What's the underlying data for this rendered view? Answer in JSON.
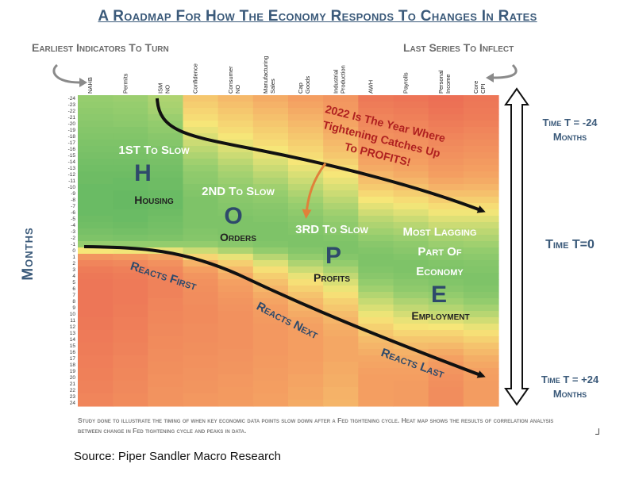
{
  "title": "A Roadmap For How The Economy Responds To Changes In Rates",
  "labels": {
    "earliest": "Earliest Indicators To Turn",
    "last": "Last Series To Inflect",
    "months_axis": "Months",
    "time_top_1": "Time T = -24",
    "time_top_2": "Months",
    "time_zero": "Time T=0",
    "time_bot_1": "Time T = +24",
    "time_bot_2": "Months"
  },
  "annotations": {
    "hope_h_1": "1ST To Slow",
    "hope_h_letter": "H",
    "hope_h_word": "Housing",
    "hope_o_1": "2ND To Slow",
    "hope_o_letter": "O",
    "hope_o_word": "Orders",
    "hope_p_1": "3RD To Slow",
    "hope_p_letter": "P",
    "hope_p_word": "Profits",
    "hope_e_1": "Most Lagging",
    "hope_e_2": "Part Of",
    "hope_e_3": "Economy",
    "hope_e_letter": "E",
    "hope_e_word": "Employment",
    "callout_1": "2022 Is The Year Where",
    "callout_2": "Tightening Catches Up",
    "callout_3": "To PROFITS!",
    "reacts_first": "Reacts First",
    "reacts_next": "Reacts Next",
    "reacts_last": "Reacts Last"
  },
  "footnote": "Study done to illustrate the timing of when key economic data points slow down after a Fed tightening cycle. Heat map shows the results of correlation analysis between change in Fed tightening cycle and peaks in data.",
  "corner_mark": "┘",
  "source": "Source: Piper Sandler Macro Research",
  "colors": {
    "title": "#3b5a7a",
    "annotation_text": "#2e4a6b",
    "callout_text": "#b02020",
    "hope_text_white": "#ffffff",
    "arrow_black": "#111111",
    "callout_arrow": "#e0813a"
  },
  "chart_data": {
    "type": "heatmap",
    "x": [
      "NAHB",
      "Permits",
      "ISM NO",
      "Confidence",
      "Consumer NO",
      "Manufacturing Sales",
      "Cap Goods",
      "Industrial Production",
      "AWH",
      "Payrolls",
      "Personal Income",
      "Core CPI"
    ],
    "y": [
      -24,
      -23,
      -22,
      -21,
      -20,
      -19,
      -18,
      -17,
      -16,
      -15,
      -14,
      -13,
      -12,
      -11,
      -10,
      -9,
      -8,
      -7,
      -6,
      -5,
      -4,
      -3,
      -2,
      -1,
      0,
      1,
      2,
      3,
      4,
      5,
      6,
      7,
      8,
      9,
      10,
      11,
      12,
      13,
      14,
      15,
      16,
      17,
      18,
      19,
      20,
      21,
      22,
      23,
      24
    ],
    "ylabel": "Months",
    "value_scale": "correlation (0 = red/weak, 1 = green/strong)",
    "z_columns": [
      [
        0.75,
        0.76,
        0.77,
        0.78,
        0.79,
        0.8,
        0.81,
        0.82,
        0.83,
        0.84,
        0.85,
        0.86,
        0.87,
        0.87,
        0.88,
        0.88,
        0.88,
        0.88,
        0.88,
        0.87,
        0.86,
        0.84,
        0.82,
        0.75,
        0.55,
        0.3,
        0.22,
        0.18,
        0.16,
        0.15,
        0.15,
        0.15,
        0.15,
        0.15,
        0.15,
        0.16,
        0.16,
        0.17,
        0.17,
        0.18,
        0.18,
        0.19,
        0.19,
        0.2,
        0.2,
        0.21,
        0.21,
        0.22,
        0.22
      ],
      [
        0.74,
        0.75,
        0.76,
        0.77,
        0.78,
        0.8,
        0.81,
        0.82,
        0.83,
        0.84,
        0.85,
        0.86,
        0.87,
        0.88,
        0.88,
        0.89,
        0.89,
        0.89,
        0.88,
        0.88,
        0.87,
        0.85,
        0.83,
        0.76,
        0.56,
        0.32,
        0.24,
        0.2,
        0.18,
        0.17,
        0.17,
        0.17,
        0.17,
        0.18,
        0.18,
        0.19,
        0.19,
        0.2,
        0.2,
        0.21,
        0.21,
        0.22,
        0.22,
        0.23,
        0.23,
        0.24,
        0.24,
        0.25,
        0.25
      ],
      [
        0.7,
        0.71,
        0.72,
        0.74,
        0.76,
        0.77,
        0.79,
        0.8,
        0.82,
        0.83,
        0.84,
        0.85,
        0.86,
        0.87,
        0.87,
        0.88,
        0.88,
        0.88,
        0.87,
        0.86,
        0.85,
        0.84,
        0.82,
        0.76,
        0.58,
        0.36,
        0.28,
        0.24,
        0.22,
        0.21,
        0.21,
        0.21,
        0.22,
        0.22,
        0.23,
        0.23,
        0.24,
        0.24,
        0.25,
        0.25,
        0.26,
        0.26,
        0.27,
        0.27,
        0.28,
        0.28,
        0.29,
        0.29,
        0.3
      ],
      [
        0.46,
        0.48,
        0.5,
        0.52,
        0.55,
        0.58,
        0.61,
        0.64,
        0.67,
        0.7,
        0.73,
        0.75,
        0.77,
        0.78,
        0.8,
        0.81,
        0.82,
        0.82,
        0.82,
        0.82,
        0.82,
        0.81,
        0.8,
        0.76,
        0.64,
        0.5,
        0.4,
        0.34,
        0.3,
        0.28,
        0.27,
        0.26,
        0.26,
        0.25,
        0.25,
        0.25,
        0.26,
        0.26,
        0.26,
        0.27,
        0.27,
        0.28,
        0.28,
        0.29,
        0.29,
        0.3,
        0.3,
        0.31,
        0.31
      ],
      [
        0.42,
        0.44,
        0.46,
        0.48,
        0.5,
        0.52,
        0.55,
        0.58,
        0.61,
        0.64,
        0.67,
        0.7,
        0.72,
        0.74,
        0.76,
        0.78,
        0.79,
        0.8,
        0.81,
        0.82,
        0.82,
        0.82,
        0.81,
        0.79,
        0.7,
        0.58,
        0.48,
        0.42,
        0.38,
        0.35,
        0.33,
        0.31,
        0.3,
        0.29,
        0.28,
        0.28,
        0.28,
        0.28,
        0.28,
        0.28,
        0.29,
        0.29,
        0.3,
        0.3,
        0.31,
        0.31,
        0.32,
        0.32,
        0.33
      ],
      [
        0.38,
        0.4,
        0.42,
        0.44,
        0.46,
        0.48,
        0.5,
        0.52,
        0.55,
        0.58,
        0.61,
        0.64,
        0.67,
        0.7,
        0.73,
        0.75,
        0.77,
        0.79,
        0.8,
        0.81,
        0.82,
        0.82,
        0.82,
        0.81,
        0.76,
        0.68,
        0.6,
        0.53,
        0.48,
        0.44,
        0.41,
        0.38,
        0.36,
        0.34,
        0.33,
        0.32,
        0.31,
        0.31,
        0.31,
        0.31,
        0.31,
        0.32,
        0.32,
        0.33,
        0.33,
        0.34,
        0.34,
        0.35,
        0.35
      ],
      [
        0.34,
        0.36,
        0.38,
        0.4,
        0.42,
        0.44,
        0.46,
        0.48,
        0.5,
        0.52,
        0.55,
        0.58,
        0.61,
        0.64,
        0.67,
        0.7,
        0.73,
        0.75,
        0.77,
        0.79,
        0.8,
        0.81,
        0.82,
        0.82,
        0.8,
        0.76,
        0.7,
        0.64,
        0.58,
        0.53,
        0.49,
        0.45,
        0.42,
        0.4,
        0.38,
        0.36,
        0.35,
        0.34,
        0.34,
        0.34,
        0.34,
        0.34,
        0.35,
        0.35,
        0.36,
        0.36,
        0.37,
        0.37,
        0.38
      ],
      [
        0.3,
        0.31,
        0.32,
        0.34,
        0.36,
        0.38,
        0.4,
        0.42,
        0.44,
        0.46,
        0.49,
        0.52,
        0.55,
        0.58,
        0.61,
        0.64,
        0.67,
        0.7,
        0.73,
        0.75,
        0.77,
        0.79,
        0.81,
        0.82,
        0.82,
        0.8,
        0.76,
        0.71,
        0.66,
        0.61,
        0.57,
        0.53,
        0.49,
        0.46,
        0.43,
        0.41,
        0.39,
        0.38,
        0.37,
        0.37,
        0.37,
        0.37,
        0.38,
        0.38,
        0.39,
        0.39,
        0.4,
        0.4,
        0.41
      ],
      [
        0.16,
        0.18,
        0.2,
        0.22,
        0.24,
        0.26,
        0.28,
        0.3,
        0.32,
        0.34,
        0.36,
        0.38,
        0.41,
        0.44,
        0.47,
        0.51,
        0.55,
        0.59,
        0.63,
        0.67,
        0.7,
        0.73,
        0.76,
        0.79,
        0.81,
        0.82,
        0.82,
        0.81,
        0.79,
        0.76,
        0.73,
        0.69,
        0.65,
        0.61,
        0.57,
        0.53,
        0.49,
        0.46,
        0.43,
        0.41,
        0.39,
        0.37,
        0.36,
        0.35,
        0.34,
        0.34,
        0.34,
        0.34,
        0.35
      ],
      [
        0.14,
        0.16,
        0.18,
        0.2,
        0.22,
        0.24,
        0.26,
        0.28,
        0.3,
        0.32,
        0.34,
        0.36,
        0.38,
        0.41,
        0.44,
        0.48,
        0.52,
        0.56,
        0.6,
        0.64,
        0.68,
        0.71,
        0.74,
        0.77,
        0.79,
        0.81,
        0.82,
        0.82,
        0.81,
        0.79,
        0.77,
        0.74,
        0.7,
        0.66,
        0.62,
        0.58,
        0.54,
        0.5,
        0.46,
        0.43,
        0.4,
        0.38,
        0.36,
        0.35,
        0.34,
        0.33,
        0.33,
        0.33,
        0.33
      ],
      [
        0.12,
        0.13,
        0.14,
        0.16,
        0.18,
        0.2,
        0.22,
        0.24,
        0.26,
        0.28,
        0.3,
        0.32,
        0.34,
        0.37,
        0.4,
        0.44,
        0.48,
        0.52,
        0.56,
        0.6,
        0.64,
        0.68,
        0.71,
        0.74,
        0.77,
        0.79,
        0.81,
        0.82,
        0.82,
        0.81,
        0.79,
        0.76,
        0.73,
        0.69,
        0.65,
        0.6,
        0.55,
        0.5,
        0.46,
        0.42,
        0.38,
        0.35,
        0.32,
        0.3,
        0.28,
        0.27,
        0.26,
        0.26,
        0.26
      ],
      [
        0.15,
        0.16,
        0.17,
        0.18,
        0.2,
        0.22,
        0.24,
        0.26,
        0.28,
        0.3,
        0.32,
        0.34,
        0.36,
        0.38,
        0.41,
        0.44,
        0.48,
        0.52,
        0.56,
        0.6,
        0.64,
        0.67,
        0.7,
        0.73,
        0.76,
        0.78,
        0.8,
        0.81,
        0.82,
        0.82,
        0.81,
        0.79,
        0.76,
        0.72,
        0.68,
        0.63,
        0.58,
        0.53,
        0.49,
        0.45,
        0.42,
        0.39,
        0.37,
        0.35,
        0.34,
        0.33,
        0.33,
        0.33,
        0.34
      ]
    ]
  }
}
